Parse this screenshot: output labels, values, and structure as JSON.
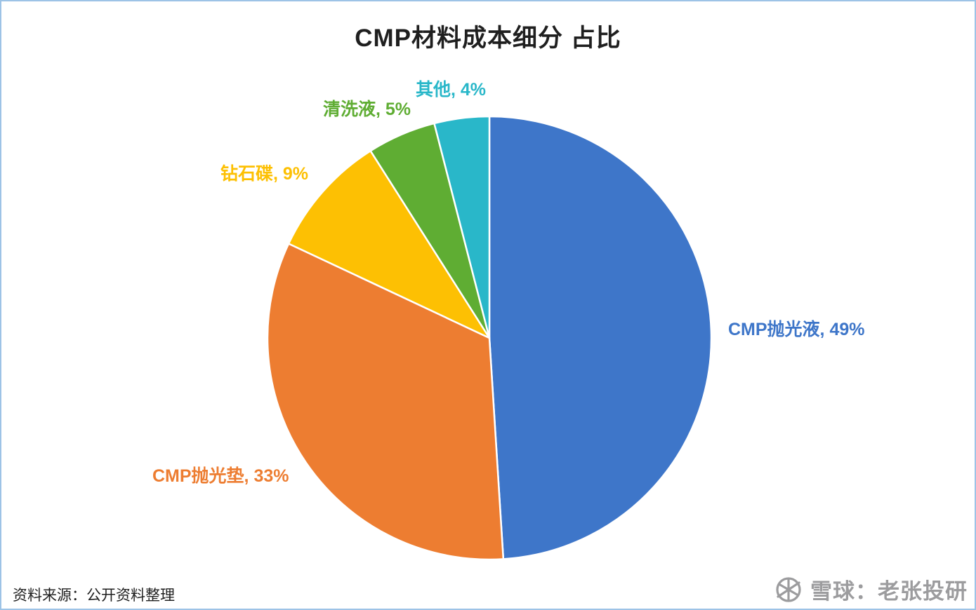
{
  "chart_data": {
    "type": "pie",
    "title": "CMP材料成本细分 占比",
    "categories": [
      "CMP抛光液",
      "CMP抛光垫",
      "钻石碟",
      "清洗液",
      "其他"
    ],
    "values": [
      49,
      33,
      9,
      5,
      4
    ],
    "unit": "%",
    "colors": [
      "#3e76c9",
      "#ed7d31",
      "#fdc003",
      "#5fad33",
      "#29b7c9"
    ],
    "point_labels": [
      "CMP抛光液, 49%",
      "CMP抛光垫, 33%",
      "钻石碟, 9%",
      "清洗液, 5%",
      "其他, 4%"
    ],
    "start_angle_deg": 0,
    "direction": "clockwise",
    "legend": "none",
    "label_style": "category-and-percent",
    "slice_border_color": "#ffffff"
  },
  "footer": {
    "source": "资料来源：公开资料整理"
  },
  "watermark": {
    "text": "雪球：老张投研",
    "logo": "xueqiu-snowball-icon",
    "color": "#9c9c9e"
  }
}
